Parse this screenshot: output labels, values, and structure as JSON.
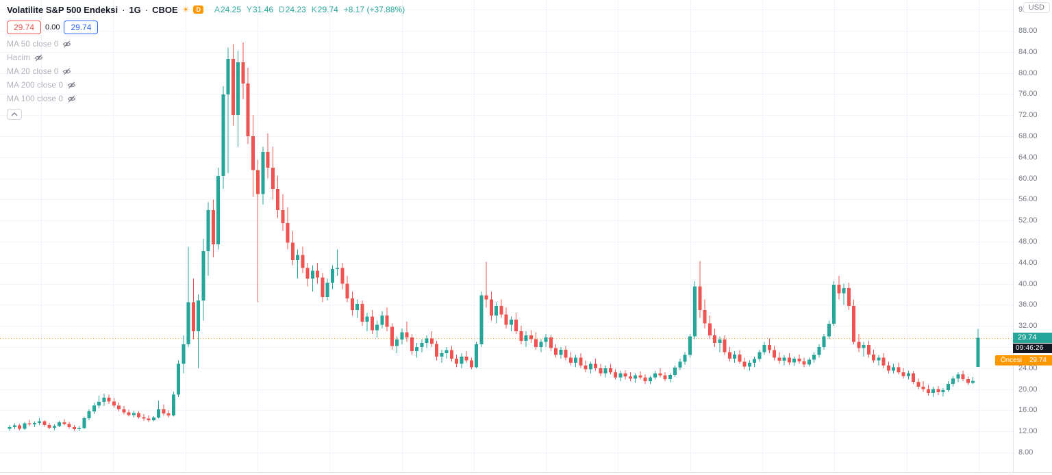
{
  "header": {
    "symbol_title": "Volatilite S&P 500 Endeksi",
    "separator": "·",
    "interval": "1G",
    "exchange": "CBOE",
    "delayed_badge": "D",
    "ohlc": {
      "open_label": "A",
      "open": "24.25",
      "high_label": "Y",
      "high": "31.46",
      "low_label": "D",
      "low": "24.23",
      "close_label": "K",
      "close": "29.74",
      "change": "+8.17 (+37.88%)"
    },
    "sell_price": "29.74",
    "spread": "0.00",
    "buy_price": "29.74"
  },
  "legend": {
    "indicators": [
      {
        "label": "MA 50 close 0"
      },
      {
        "label": "Hacim"
      },
      {
        "label": "MA 20 close 0"
      },
      {
        "label": "MA 200 close 0"
      },
      {
        "label": "MA 100 close 0"
      }
    ]
  },
  "price_axis": {
    "currency": "USD",
    "labels": [
      "92.00",
      "88.00",
      "84.00",
      "80.00",
      "76.00",
      "72.00",
      "68.00",
      "64.00",
      "60.00",
      "56.00",
      "52.00",
      "48.00",
      "44.00",
      "40.00",
      "36.00",
      "32.00",
      "24.00",
      "20.00",
      "16.00",
      "12.00",
      "8.00"
    ],
    "current_price_badge": "29.74",
    "countdown_badge": "09:46:26",
    "premarket_label": "Öncesi",
    "premarket_price": "29.74"
  },
  "icons": {
    "delayed_sun": "☀"
  },
  "colors": {
    "up": "#26a69a",
    "down": "#ef5350",
    "premarket": "#ff9800",
    "grid": "#f0f3fa",
    "text_dark": "#131722",
    "text_gray": "#787b86",
    "text_disabled": "#b2b5be",
    "buy_blue": "#2962ff"
  },
  "chart_data": {
    "type": "candlestick",
    "title": "Volatilite S&P 500 Endeksi",
    "interval": "1G",
    "exchange": "CBOE",
    "currency": "USD",
    "y_axis": {
      "min": 8,
      "max": 92,
      "step": 4
    },
    "current_price": 29.74,
    "premarket_price": 29.74,
    "last_change": "+8.17 (+37.88%)",
    "legend_note": "candles as [open, high, low, close]",
    "candles": [
      [
        12.5,
        13.2,
        12.1,
        12.8
      ],
      [
        12.8,
        13.5,
        12.4,
        13.1
      ],
      [
        13.1,
        13.4,
        12.2,
        12.5
      ],
      [
        12.5,
        13.8,
        12.3,
        13.5
      ],
      [
        13.5,
        14.2,
        13.0,
        13.3
      ],
      [
        13.3,
        13.9,
        12.8,
        13.6
      ],
      [
        13.6,
        14.5,
        13.2,
        13.9
      ],
      [
        13.9,
        14.1,
        12.9,
        13.2
      ],
      [
        13.2,
        13.6,
        12.4,
        12.7
      ],
      [
        12.7,
        13.3,
        12.2,
        13.0
      ],
      [
        13.0,
        14.0,
        12.8,
        13.7
      ],
      [
        13.7,
        14.3,
        13.1,
        13.4
      ],
      [
        13.4,
        13.8,
        12.5,
        12.8
      ],
      [
        12.8,
        13.2,
        12.1,
        12.4
      ],
      [
        12.4,
        13.0,
        12.0,
        12.6
      ],
      [
        12.6,
        14.8,
        12.5,
        14.5
      ],
      [
        14.5,
        16.2,
        14.1,
        15.8
      ],
      [
        15.8,
        17.4,
        15.3,
        16.9
      ],
      [
        16.9,
        18.8,
        16.4,
        17.6
      ],
      [
        17.6,
        19.2,
        16.8,
        18.4
      ],
      [
        18.4,
        19.0,
        17.2,
        17.7
      ],
      [
        17.7,
        18.3,
        16.5,
        16.9
      ],
      [
        16.9,
        17.5,
        15.8,
        16.2
      ],
      [
        16.2,
        16.8,
        15.2,
        15.6
      ],
      [
        15.6,
        16.1,
        14.8,
        15.1
      ],
      [
        15.1,
        15.9,
        14.6,
        15.5
      ],
      [
        15.5,
        15.8,
        14.4,
        14.7
      ],
      [
        14.7,
        15.3,
        14.0,
        14.4
      ],
      [
        14.4,
        15.0,
        13.8,
        14.1
      ],
      [
        14.1,
        14.9,
        13.9,
        14.6
      ],
      [
        14.6,
        17.8,
        14.4,
        16.2
      ],
      [
        16.2,
        17.1,
        15.0,
        15.4
      ],
      [
        15.4,
        16.0,
        14.6,
        15.0
      ],
      [
        15.0,
        19.5,
        14.8,
        19.0
      ],
      [
        19.0,
        25.5,
        18.5,
        24.8
      ],
      [
        24.8,
        30.2,
        23.0,
        28.5
      ],
      [
        28.5,
        47.0,
        28.0,
        36.5
      ],
      [
        36.5,
        41.0,
        29.5,
        31.0
      ],
      [
        31.0,
        38.0,
        24.0,
        36.8
      ],
      [
        36.8,
        48.5,
        33.0,
        46.2
      ],
      [
        46.2,
        55.5,
        41.5,
        54.0
      ],
      [
        54.0,
        56.0,
        45.0,
        47.5
      ],
      [
        47.5,
        62.0,
        46.5,
        60.5
      ],
      [
        60.5,
        77.5,
        58.0,
        75.9
      ],
      [
        75.9,
        84.8,
        61.0,
        82.7
      ],
      [
        82.7,
        85.5,
        70.0,
        72.0
      ],
      [
        72.0,
        84.2,
        66.0,
        82.0
      ],
      [
        82.0,
        85.8,
        75.0,
        78.0
      ],
      [
        78.0,
        81.0,
        66.5,
        68.0
      ],
      [
        68.0,
        72.0,
        56.5,
        61.6
      ],
      [
        61.6,
        63.5,
        36.5,
        57.0
      ],
      [
        57.0,
        66.0,
        55.0,
        65.0
      ],
      [
        65.0,
        68.5,
        60.0,
        62.0
      ],
      [
        62.0,
        66.0,
        56.0,
        58.0
      ],
      [
        58.0,
        60.5,
        52.5,
        54.0
      ],
      [
        54.0,
        57.0,
        50.0,
        51.5
      ],
      [
        51.5,
        54.5,
        46.5,
        47.8
      ],
      [
        47.8,
        50.0,
        43.5,
        44.5
      ],
      [
        44.5,
        46.5,
        41.0,
        45.5
      ],
      [
        45.5,
        47.0,
        42.0,
        43.0
      ],
      [
        43.0,
        44.0,
        39.5,
        41.0
      ],
      [
        41.0,
        43.5,
        38.5,
        42.5
      ],
      [
        42.5,
        44.0,
        40.0,
        41.2
      ],
      [
        41.2,
        42.0,
        36.5,
        37.5
      ],
      [
        37.5,
        41.0,
        36.8,
        40.2
      ],
      [
        40.2,
        43.5,
        39.0,
        42.8
      ],
      [
        42.8,
        46.5,
        41.5,
        43.0
      ],
      [
        43.0,
        44.0,
        39.0,
        40.0
      ],
      [
        40.0,
        41.5,
        36.5,
        37.2
      ],
      [
        37.2,
        38.5,
        34.0,
        35.0
      ],
      [
        35.0,
        37.0,
        33.5,
        36.2
      ],
      [
        36.2,
        36.8,
        32.0,
        32.8
      ],
      [
        32.8,
        34.5,
        31.0,
        33.8
      ],
      [
        33.8,
        35.0,
        30.5,
        31.2
      ],
      [
        31.2,
        33.0,
        29.8,
        32.2
      ],
      [
        32.2,
        34.8,
        31.5,
        34.0
      ],
      [
        34.0,
        35.5,
        31.0,
        31.8
      ],
      [
        31.8,
        32.5,
        27.5,
        28.2
      ],
      [
        28.2,
        30.0,
        26.8,
        29.4
      ],
      [
        29.4,
        31.5,
        28.5,
        30.8
      ],
      [
        30.8,
        32.8,
        29.0,
        29.8
      ],
      [
        29.8,
        30.5,
        26.5,
        27.2
      ],
      [
        27.2,
        28.8,
        26.0,
        28.0
      ],
      [
        28.0,
        29.5,
        27.0,
        28.8
      ],
      [
        28.8,
        30.2,
        27.8,
        29.6
      ],
      [
        29.6,
        31.0,
        28.0,
        28.6
      ],
      [
        28.6,
        29.2,
        25.5,
        26.2
      ],
      [
        26.2,
        27.5,
        25.0,
        26.8
      ],
      [
        26.8,
        28.0,
        25.8,
        27.4
      ],
      [
        27.4,
        28.2,
        25.2,
        25.8
      ],
      [
        25.8,
        26.5,
        24.2,
        24.8
      ],
      [
        24.8,
        26.8,
        24.0,
        26.2
      ],
      [
        26.2,
        27.2,
        25.0,
        25.5
      ],
      [
        25.5,
        26.0,
        23.8,
        24.2
      ],
      [
        24.2,
        29.0,
        24.0,
        28.5
      ],
      [
        28.5,
        38.5,
        28.0,
        37.8
      ],
      [
        37.8,
        44.2,
        35.5,
        37.0
      ],
      [
        37.0,
        38.5,
        33.0,
        34.0
      ],
      [
        34.0,
        36.5,
        32.5,
        35.8
      ],
      [
        35.8,
        37.0,
        33.5,
        34.2
      ],
      [
        34.2,
        35.5,
        31.5,
        32.2
      ],
      [
        32.2,
        33.8,
        31.0,
        33.2
      ],
      [
        33.2,
        34.5,
        30.5,
        31.0
      ],
      [
        31.0,
        32.0,
        28.5,
        29.2
      ],
      [
        29.2,
        31.0,
        28.0,
        30.2
      ],
      [
        30.2,
        31.2,
        28.8,
        29.5
      ],
      [
        29.5,
        30.8,
        27.5,
        28.0
      ],
      [
        28.0,
        29.5,
        27.0,
        29.0
      ],
      [
        29.0,
        30.5,
        28.0,
        29.8
      ],
      [
        29.8,
        30.2,
        27.2,
        27.8
      ],
      [
        27.8,
        28.5,
        26.0,
        26.5
      ],
      [
        26.5,
        28.0,
        25.8,
        27.5
      ],
      [
        27.5,
        28.2,
        25.5,
        26.0
      ],
      [
        26.0,
        27.0,
        24.5,
        25.0
      ],
      [
        25.0,
        26.5,
        24.2,
        26.0
      ],
      [
        26.0,
        26.8,
        24.0,
        24.5
      ],
      [
        24.5,
        25.5,
        23.2,
        23.8
      ],
      [
        23.8,
        25.2,
        23.0,
        24.8
      ],
      [
        24.8,
        25.8,
        23.5,
        24.0
      ],
      [
        24.0,
        24.8,
        22.5,
        23.0
      ],
      [
        23.0,
        24.5,
        22.2,
        24.0
      ],
      [
        24.0,
        24.8,
        22.8,
        23.2
      ],
      [
        23.2,
        23.8,
        21.8,
        22.2
      ],
      [
        22.2,
        23.5,
        21.5,
        23.0
      ],
      [
        23.0,
        23.6,
        21.8,
        22.4
      ],
      [
        22.4,
        23.2,
        21.5,
        22.0
      ],
      [
        22.0,
        23.0,
        21.2,
        22.6
      ],
      [
        22.6,
        23.4,
        21.8,
        22.2
      ],
      [
        22.2,
        22.8,
        21.0,
        21.5
      ],
      [
        21.5,
        22.5,
        21.0,
        22.2
      ],
      [
        22.2,
        23.5,
        21.8,
        23.0
      ],
      [
        23.0,
        24.0,
        22.2,
        22.6
      ],
      [
        22.6,
        23.2,
        21.5,
        21.9
      ],
      [
        21.9,
        23.0,
        21.3,
        22.7
      ],
      [
        22.7,
        24.5,
        22.3,
        24.1
      ],
      [
        24.1,
        25.8,
        23.6,
        25.2
      ],
      [
        25.2,
        27.0,
        24.6,
        26.5
      ],
      [
        26.5,
        30.5,
        26.0,
        30.0
      ],
      [
        30.0,
        40.5,
        29.5,
        39.5
      ],
      [
        39.5,
        44.3,
        33.5,
        35.0
      ],
      [
        35.0,
        37.0,
        31.5,
        32.5
      ],
      [
        32.5,
        34.0,
        29.5,
        30.2
      ],
      [
        30.2,
        31.5,
        28.0,
        28.8
      ],
      [
        28.8,
        30.0,
        27.0,
        29.4
      ],
      [
        29.4,
        30.2,
        26.5,
        27.0
      ],
      [
        27.0,
        28.0,
        25.2,
        25.8
      ],
      [
        25.8,
        27.2,
        25.0,
        26.6
      ],
      [
        26.6,
        27.4,
        24.8,
        25.2
      ],
      [
        25.2,
        26.0,
        23.8,
        24.3
      ],
      [
        24.3,
        25.5,
        23.5,
        25.0
      ],
      [
        25.0,
        26.2,
        24.2,
        25.7
      ],
      [
        25.7,
        27.5,
        25.2,
        27.0
      ],
      [
        27.0,
        29.0,
        26.5,
        28.4
      ],
      [
        28.4,
        29.6,
        26.8,
        27.4
      ],
      [
        27.4,
        28.2,
        25.5,
        26.0
      ],
      [
        26.0,
        27.0,
        24.8,
        25.4
      ],
      [
        25.4,
        26.5,
        24.5,
        26.0
      ],
      [
        26.0,
        26.8,
        24.6,
        25.1
      ],
      [
        25.1,
        26.2,
        24.4,
        25.8
      ],
      [
        25.8,
        26.6,
        24.8,
        25.3
      ],
      [
        25.3,
        26.0,
        24.2,
        24.7
      ],
      [
        24.7,
        26.0,
        24.3,
        25.6
      ],
      [
        25.6,
        27.0,
        25.0,
        26.5
      ],
      [
        26.5,
        28.5,
        26.0,
        28.0
      ],
      [
        28.0,
        30.5,
        27.5,
        30.0
      ],
      [
        30.0,
        33.0,
        29.5,
        32.4
      ],
      [
        32.4,
        40.5,
        32.0,
        39.8
      ],
      [
        39.8,
        41.5,
        37.0,
        38.2
      ],
      [
        38.2,
        40.0,
        36.0,
        39.2
      ],
      [
        39.2,
        40.2,
        35.0,
        35.8
      ],
      [
        35.8,
        37.0,
        28.5,
        29.0
      ],
      [
        29.0,
        30.5,
        27.0,
        27.8
      ],
      [
        27.8,
        29.0,
        26.2,
        28.4
      ],
      [
        28.4,
        29.2,
        26.0,
        26.6
      ],
      [
        26.6,
        27.5,
        25.0,
        25.5
      ],
      [
        25.5,
        26.5,
        24.5,
        26.0
      ],
      [
        26.0,
        26.8,
        24.0,
        24.5
      ],
      [
        24.5,
        25.2,
        23.0,
        23.5
      ],
      [
        23.5,
        24.8,
        23.0,
        24.2
      ],
      [
        24.2,
        25.0,
        22.8,
        23.2
      ],
      [
        23.2,
        24.0,
        22.0,
        22.5
      ],
      [
        22.5,
        23.5,
        21.8,
        23.0
      ],
      [
        23.0,
        23.4,
        21.0,
        21.4
      ],
      [
        21.4,
        22.0,
        20.0,
        20.5
      ],
      [
        20.5,
        21.5,
        19.5,
        20.0
      ],
      [
        20.0,
        20.8,
        18.8,
        19.3
      ],
      [
        19.3,
        20.5,
        18.5,
        20.0
      ],
      [
        20.0,
        20.6,
        18.9,
        19.4
      ],
      [
        19.4,
        20.2,
        18.6,
        19.8
      ],
      [
        19.8,
        21.5,
        19.5,
        21.0
      ],
      [
        21.0,
        22.5,
        20.5,
        22.0
      ],
      [
        22.0,
        23.2,
        21.3,
        22.8
      ],
      [
        22.8,
        23.5,
        21.5,
        21.9
      ],
      [
        21.9,
        22.4,
        20.8,
        21.2
      ],
      [
        21.2,
        22.3,
        21.0,
        21.57
      ],
      [
        24.25,
        31.46,
        24.23,
        29.74
      ]
    ]
  }
}
